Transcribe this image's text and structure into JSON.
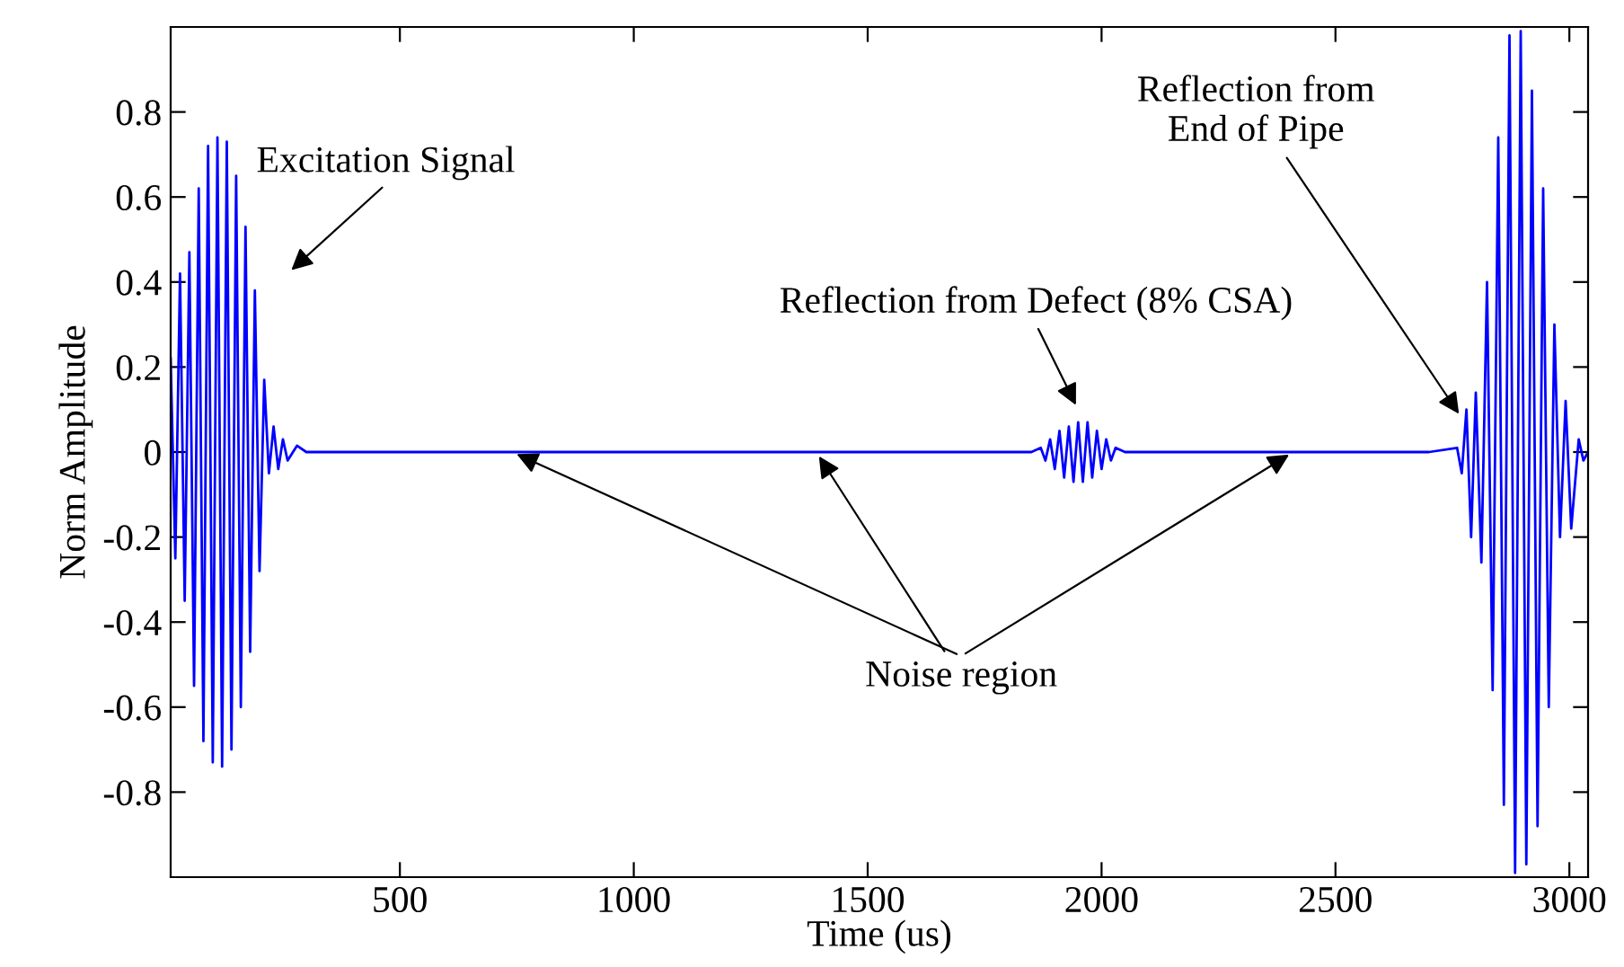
{
  "chart_data": {
    "type": "line",
    "xlabel": "Time (us)",
    "ylabel": "Norm Amplitude",
    "x": [
      10,
      20,
      30,
      40,
      50,
      60,
      70,
      80,
      90,
      100,
      110,
      120,
      130,
      140,
      150,
      160,
      170,
      180,
      190,
      200,
      210,
      220,
      230,
      240,
      250,
      260,
      280,
      300,
      450,
      600,
      1850,
      1870,
      1880,
      1890,
      1900,
      1910,
      1920,
      1930,
      1940,
      1950,
      1960,
      1970,
      1980,
      1990,
      2000,
      2010,
      2020,
      2030,
      2050,
      2700,
      2760,
      2770,
      2780,
      2790,
      2800,
      2812,
      2824,
      2836,
      2848,
      2860,
      2872,
      2884,
      2896,
      2908,
      2920,
      2932,
      2944,
      2956,
      2968,
      2980,
      2992,
      3004,
      3020,
      3030,
      3040
    ],
    "series": [
      {
        "color": "#0000ff",
        "values": [
          0.22,
          -0.25,
          0.42,
          -0.35,
          0.47,
          -0.55,
          0.62,
          -0.68,
          0.72,
          -0.73,
          0.74,
          -0.74,
          0.73,
          -0.7,
          0.65,
          -0.6,
          0.53,
          -0.47,
          0.38,
          -0.28,
          0.17,
          -0.05,
          0.06,
          -0.04,
          0.03,
          -0.02,
          0.015,
          0,
          0,
          0,
          0,
          0.01,
          -0.02,
          0.03,
          -0.04,
          0.05,
          -0.06,
          0.06,
          -0.07,
          0.07,
          -0.07,
          0.07,
          -0.06,
          0.05,
          -0.04,
          0.03,
          -0.02,
          0.01,
          0,
          0,
          0.01,
          -0.05,
          0.1,
          -0.2,
          0.14,
          -0.26,
          0.4,
          -0.56,
          0.74,
          -0.83,
          0.98,
          -0.99,
          0.99,
          -0.97,
          0.85,
          -0.88,
          0.62,
          -0.6,
          0.3,
          -0.2,
          0.12,
          -0.18,
          0.03,
          -0.02,
          0
        ]
      }
    ],
    "xlim": [
      10,
      3040
    ],
    "ylim": [
      -1,
      1
    ],
    "xticks": [
      500,
      1000,
      1500,
      2000,
      2500,
      3000
    ],
    "yticks": [
      -0.8,
      -0.6,
      -0.4,
      -0.2,
      0,
      0.2,
      0.4,
      0.6,
      0.8
    ],
    "grid": false,
    "legend": false,
    "marker": "none",
    "line_style": "solid",
    "annotations": [
      "Excitation Signal",
      "Reflection from Defect (8% CSA)",
      {
        "text": "Reflection from\nEnd of Pipe",
        "x": 2770,
        "y": 0.08
      },
      {
        "text": "Noise region",
        "x": 1390,
        "y": 0
      }
    ]
  }
}
